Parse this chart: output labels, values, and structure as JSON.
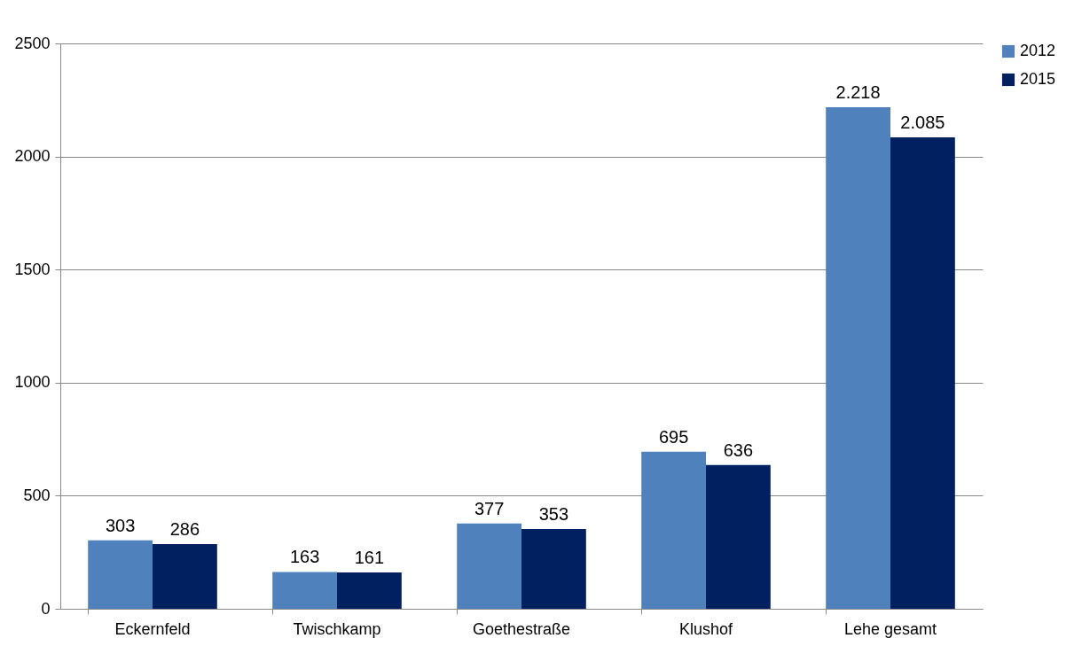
{
  "chart_data": {
    "type": "bar",
    "categories": [
      "Eckernfeld",
      "Twischkamp",
      "Goethestraße",
      "Klushof",
      "Lehe gesamt"
    ],
    "series": [
      {
        "name": "2012",
        "color": "#4f81bd",
        "values": [
          303,
          163,
          377,
          695,
          2218
        ],
        "value_labels": [
          "303",
          "163",
          "377",
          "695",
          "2.218"
        ]
      },
      {
        "name": "2015",
        "color": "#002060",
        "values": [
          286,
          161,
          353,
          636,
          2085
        ],
        "value_labels": [
          "286",
          "161",
          "353",
          "636",
          "2.085"
        ]
      }
    ],
    "ylim": [
      0,
      2500
    ],
    "yticks": [
      0,
      500,
      1000,
      1500,
      2000,
      2500
    ],
    "grid": "y",
    "legend": "right"
  }
}
